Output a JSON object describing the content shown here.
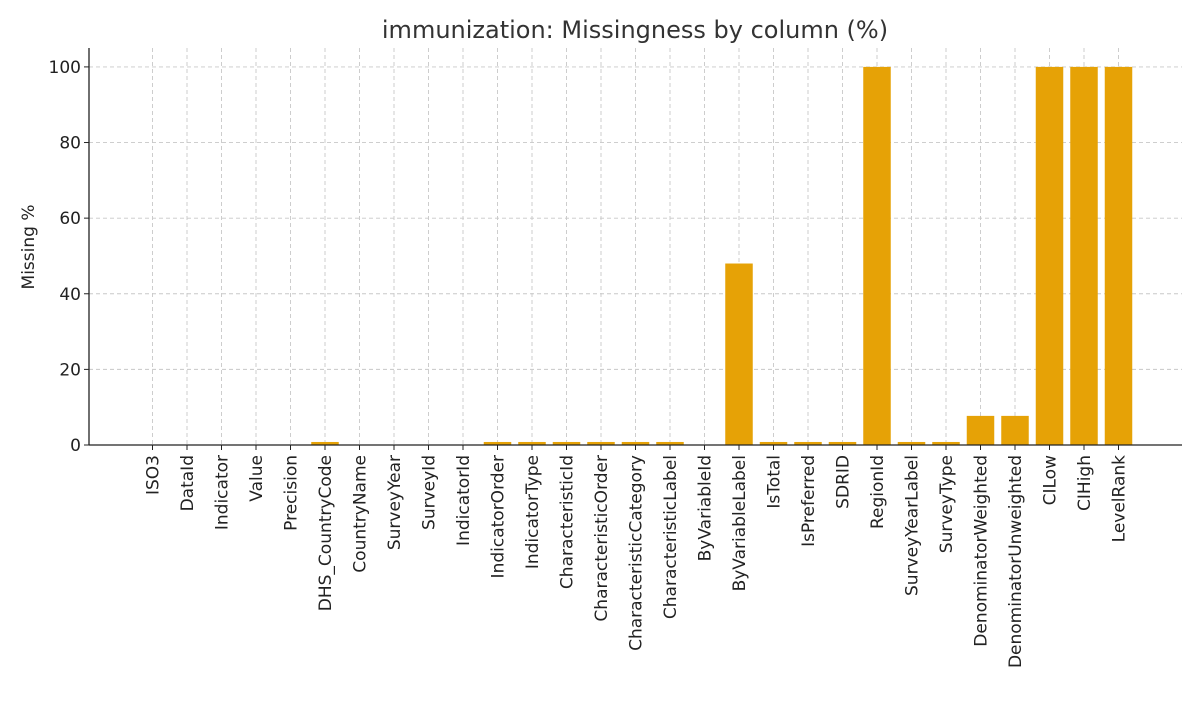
{
  "chart_data": {
    "type": "bar",
    "title": "immunization: Missingness by column (%)",
    "xlabel": "",
    "ylabel": "Missing %",
    "ylim": [
      0,
      105
    ],
    "yticks": [
      0,
      20,
      40,
      60,
      80,
      100
    ],
    "grid": true,
    "bar_color": "#e6a206",
    "categories": [
      "ISO3",
      "DataId",
      "Indicator",
      "Value",
      "Precision",
      "DHS_CountryCode",
      "CountryName",
      "SurveyYear",
      "SurveyId",
      "IndicatorId",
      "IndicatorOrder",
      "IndicatorType",
      "CharacteristicId",
      "CharacteristicOrder",
      "CharacteristicCategory",
      "CharacteristicLabel",
      "ByVariableId",
      "ByVariableLabel",
      "IsTotal",
      "IsPreferred",
      "SDRID",
      "RegionId",
      "SurveyYearLabel",
      "SurveyType",
      "DenominatorWeighted",
      "DenominatorUnweighted",
      "CILow",
      "CIHigh",
      "LevelRank"
    ],
    "values": [
      0,
      0,
      0,
      0,
      0,
      0.8,
      0,
      0,
      0,
      0,
      0.8,
      0.8,
      0.8,
      0.8,
      0.8,
      0.8,
      0,
      48,
      0.8,
      0.8,
      0.8,
      100,
      0.8,
      0.8,
      7.7,
      7.7,
      100,
      100,
      100
    ]
  }
}
